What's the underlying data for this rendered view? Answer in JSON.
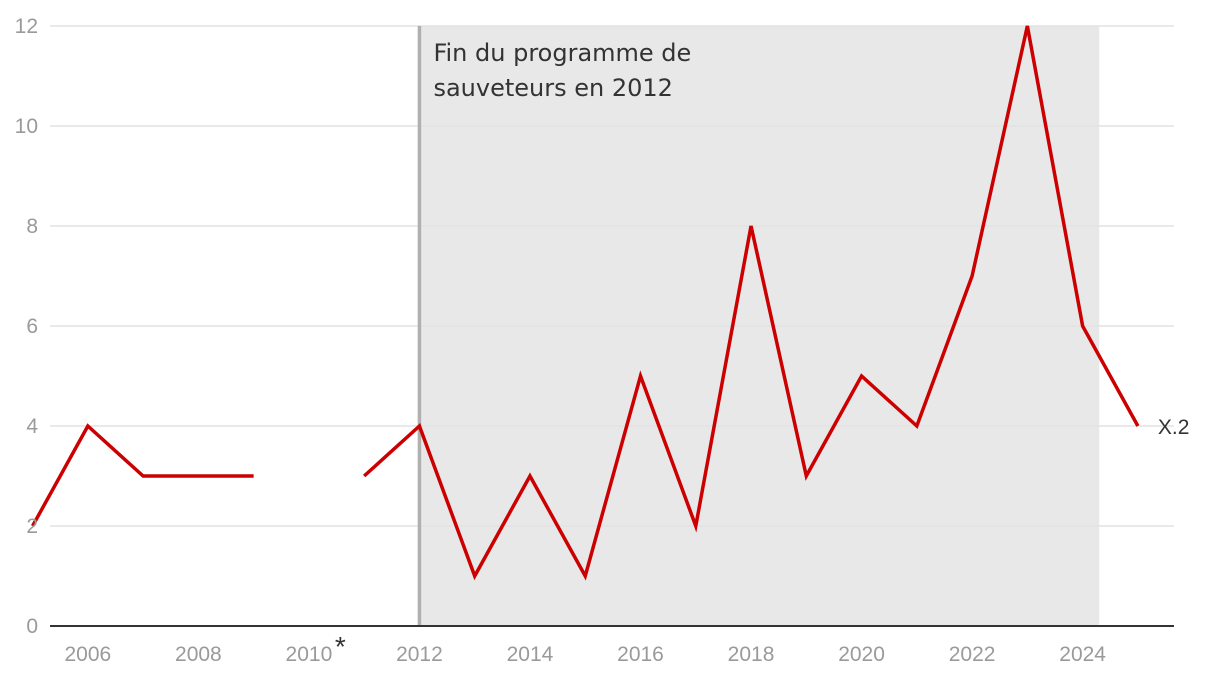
{
  "chart_data": {
    "type": "line",
    "title": "",
    "xlabel": "",
    "ylabel": "",
    "x": [
      2005,
      2006,
      2007,
      2008,
      2009,
      2010,
      2011,
      2012,
      2013,
      2014,
      2015,
      2016,
      2017,
      2018,
      2019,
      2020,
      2021,
      2022,
      2023,
      2024,
      2025
    ],
    "series": [
      {
        "values": [
          2,
          4,
          3,
          3,
          3,
          null,
          3,
          4,
          1,
          3,
          1,
          5,
          2,
          8,
          3,
          5,
          4,
          7,
          12,
          6,
          4
        ]
      }
    ],
    "xlim": [
      2004.7,
      2025.4
    ],
    "ylim": [
      0,
      12
    ],
    "yticks": [
      0,
      2,
      4,
      6,
      8,
      10,
      12
    ],
    "xticks": [
      2006,
      2008,
      2010,
      2012,
      2014,
      2016,
      2018,
      2020,
      2022,
      2024
    ],
    "xtick_labels": [
      "2006",
      "2008",
      "2010",
      "2012",
      "2014",
      "2016",
      "2018",
      "2020",
      "2022",
      "2024"
    ],
    "ytick_labels": [
      "0",
      "2",
      "4",
      "6",
      "8",
      "10",
      "12"
    ],
    "shaded_region": {
      "x_start": 2012,
      "x_end": 2024.3
    },
    "vertical_marker_x": 2012,
    "annotation": {
      "line1": "Fin du programme de",
      "line2": "sauveteurs en 2012"
    },
    "footnote_marker": {
      "text": "*",
      "x": 2010
    },
    "end_label": "X.2",
    "grid": true,
    "colors": {
      "line": "#cc0000",
      "shade": "#e8e8e8",
      "marker": "#b0b0b0",
      "grid": "#e2e2e2",
      "axis": "#333333"
    }
  }
}
